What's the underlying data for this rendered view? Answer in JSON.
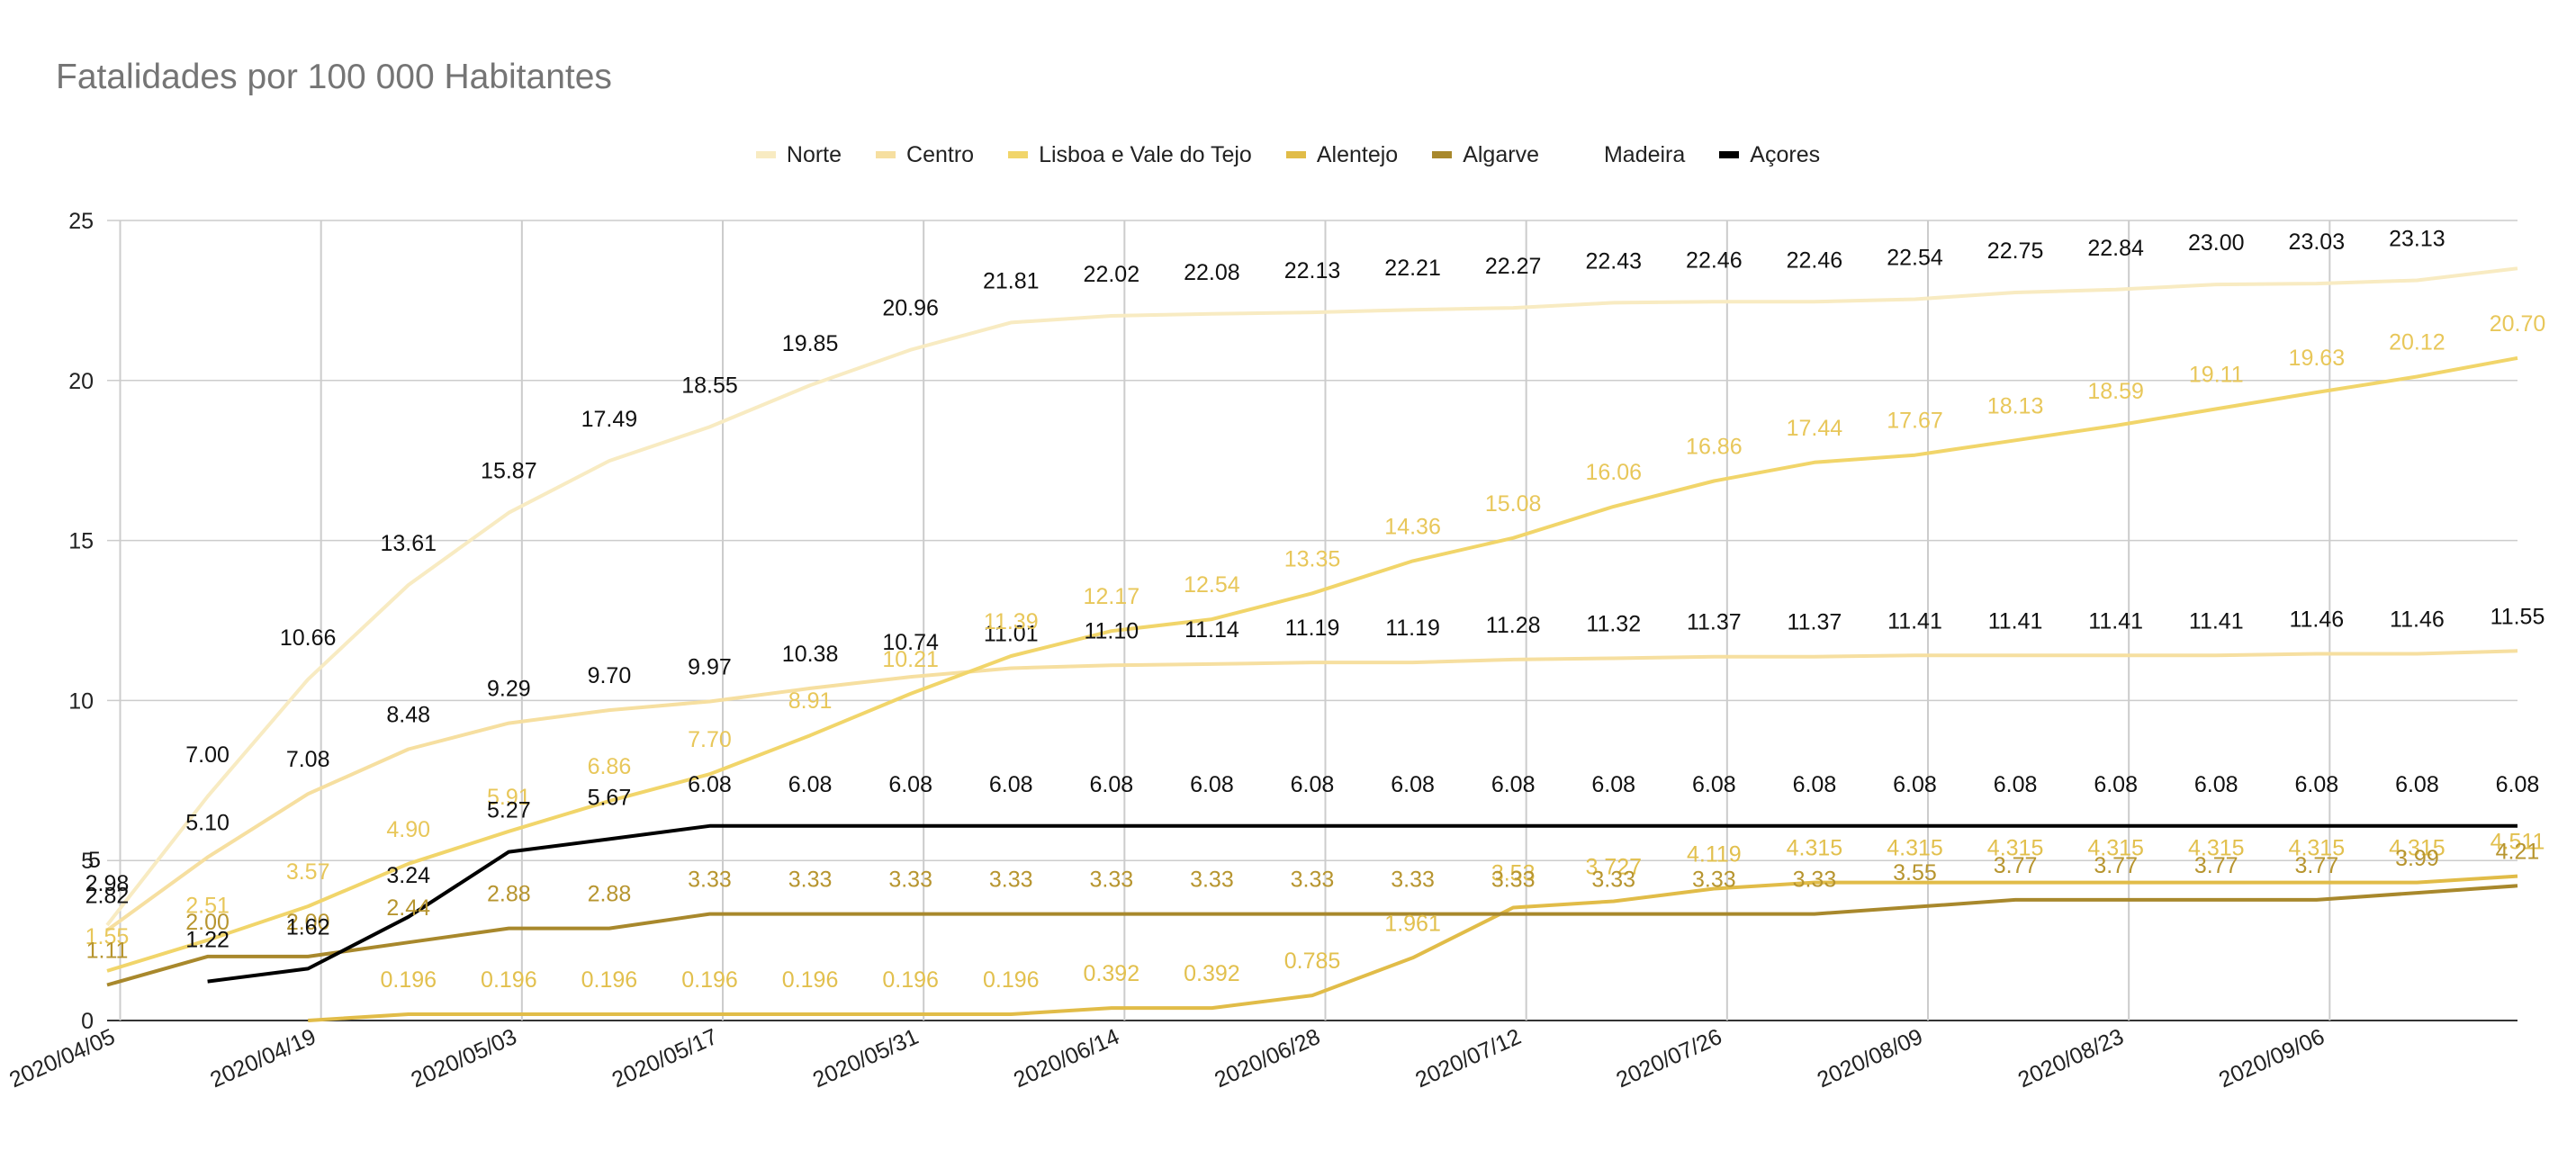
{
  "chart_data": {
    "type": "line",
    "title": "Fatalidades por 100 000 Habitantes",
    "xlabel": "",
    "ylabel": "",
    "ylim": [
      0,
      25
    ],
    "yticks": [
      "0",
      "5",
      "10",
      "15",
      "20",
      "25"
    ],
    "xticks": [
      "2020/04/05",
      "2020/04/19",
      "2020/05/03",
      "2020/05/17",
      "2020/05/31",
      "2020/06/14",
      "2020/06/28",
      "2020/07/12",
      "2020/07/26",
      "2020/08/09",
      "2020/08/23",
      "2020/09/06"
    ],
    "legend_position": "top",
    "series": [
      {
        "name": "Norte",
        "color": "#f8ebc2",
        "values": [
          2.98,
          7.0,
          10.66,
          13.61,
          15.87,
          17.49,
          18.55,
          19.85,
          20.96,
          21.81,
          22.02,
          22.08,
          22.13,
          22.21,
          22.27,
          22.43,
          22.46,
          22.46,
          22.54,
          22.75,
          22.84,
          23.0,
          23.03,
          23.13,
          23.5
        ],
        "labels": [
          "2.98",
          "7.00",
          "10.66",
          "13.61",
          "15.87",
          "17.49",
          "18.55",
          "19.85",
          "20.96",
          "21.81",
          "22.02",
          "22.08",
          "22.13",
          "22.21",
          "22.27",
          "22.43",
          "22.46",
          "22.46",
          "22.54",
          "22.75",
          "22.84",
          "23.00",
          "23.03",
          "23.13",
          ""
        ]
      },
      {
        "name": "Centro",
        "color": "#f6dfa0",
        "values": [
          2.82,
          5.1,
          7.08,
          8.48,
          9.29,
          9.7,
          9.97,
          10.38,
          10.74,
          11.01,
          11.1,
          11.14,
          11.19,
          11.19,
          11.28,
          11.32,
          11.37,
          11.37,
          11.41,
          11.41,
          11.41,
          11.41,
          11.46,
          11.46,
          11.55
        ],
        "labels": [
          "2.82",
          "5.10",
          "7.08",
          "8.48",
          "9.29",
          "9.70",
          "9.97",
          "10.38",
          "10.74",
          "11.01",
          "11.10",
          "11.14",
          "11.19",
          "11.19",
          "11.28",
          "11.32",
          "11.37",
          "11.37",
          "11.41",
          "11.41",
          "11.41",
          "11.41",
          "11.46",
          "11.46",
          "11.55"
        ]
      },
      {
        "name": "Lisboa e Vale do Tejo",
        "color": "#f1d56a",
        "values": [
          1.55,
          2.51,
          3.57,
          4.9,
          5.91,
          6.86,
          7.7,
          8.91,
          10.21,
          11.39,
          12.17,
          12.54,
          13.35,
          14.36,
          15.08,
          16.06,
          16.86,
          17.44,
          17.67,
          18.13,
          18.59,
          19.11,
          19.63,
          20.12,
          20.7
        ],
        "labels": [
          "1.55",
          "2.51",
          "3.57",
          "4.90",
          "5.91",
          "6.86",
          "7.70",
          "8.91",
          "10.21",
          "11.39",
          "12.17",
          "12.54",
          "13.35",
          "14.36",
          "15.08",
          "16.06",
          "16.86",
          "17.44",
          "17.67",
          "18.13",
          "18.59",
          "19.11",
          "19.63",
          "20.12",
          "20.70"
        ]
      },
      {
        "name": "Alentejo",
        "color": "#e1bc48",
        "values": [
          null,
          null,
          0,
          0.196,
          0.196,
          0.196,
          0.196,
          0.196,
          0.196,
          0.196,
          0.392,
          0.392,
          0.785,
          1.961,
          3.53,
          3.727,
          4.119,
          4.315,
          4.315,
          4.315,
          4.315,
          4.315,
          4.315,
          4.315,
          4.511
        ],
        "labels": [
          "",
          "",
          "",
          "0.196",
          "0.196",
          "0.196",
          "0.196",
          "0.196",
          "0.196",
          "0.196",
          "0.392",
          "0.392",
          "0.785",
          "1.961",
          "3.53",
          "3.727",
          "4.119",
          "4.315",
          "4.315",
          "4.315",
          "4.315",
          "4.315",
          "4.315",
          "4.315",
          "4.511"
        ]
      },
      {
        "name": "Algarve",
        "color": "#a8882c",
        "values": [
          1.11,
          2.0,
          2.0,
          2.44,
          2.88,
          2.88,
          3.33,
          3.33,
          3.33,
          3.33,
          3.33,
          3.33,
          3.33,
          3.33,
          3.33,
          3.33,
          3.33,
          3.33,
          3.55,
          3.77,
          3.77,
          3.77,
          3.77,
          3.99,
          4.21
        ],
        "labels": [
          "1.11",
          "2.00",
          "2.00",
          "2.44",
          "2.88",
          "2.88",
          "3.33",
          "3.33",
          "3.33",
          "3.33",
          "3.33",
          "3.33",
          "3.33",
          "3.33",
          "3.33",
          "3.33",
          "3.33",
          "3.33",
          "3.55",
          "3.77",
          "3.77",
          "3.77",
          "3.77",
          "3.99",
          "4.21"
        ]
      },
      {
        "name": "Madeira",
        "color": "#ffffff",
        "values": [],
        "labels": []
      },
      {
        "name": "Açores",
        "color": "#000000",
        "values": [
          5,
          1.22,
          1.62,
          3.24,
          5.27,
          5.67,
          6.08,
          6.08,
          6.08,
          6.08,
          6.08,
          6.08,
          6.08,
          6.08,
          6.08,
          6.08,
          6.08,
          6.08,
          6.08,
          6.08,
          6.08,
          6.08,
          6.08,
          6.08,
          6.08
        ],
        "labels": [
          "5",
          "1.22",
          "1.62",
          "3.24",
          "5.27",
          "5.67",
          "6.08",
          "6.08",
          "6.08",
          "6.08",
          "6.08",
          "6.08",
          "6.08",
          "6.08",
          "6.08",
          "6.08",
          "6.08",
          "6.08",
          "6.08",
          "6.08",
          "6.08",
          "6.08",
          "6.08",
          "6.08",
          "6.08"
        ]
      }
    ]
  }
}
